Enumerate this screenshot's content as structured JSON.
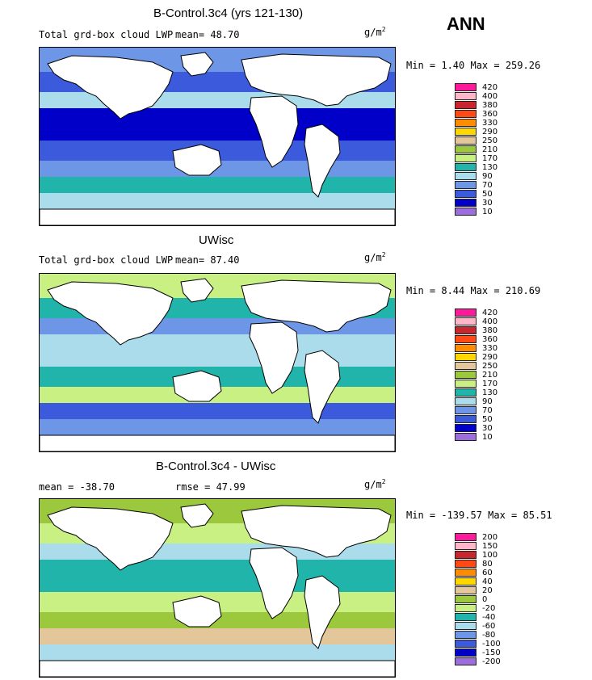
{
  "season_label": "ANN",
  "panels": [
    {
      "title": "B-Control.3c4 (yrs 121-130)",
      "left_label": "Total grd-box cloud LWP",
      "mean_text": "mean=  48.70",
      "units": "g/m",
      "units_sup": "2",
      "minmax": "Min =   1.40 Max = 259.26",
      "legend_labels": [
        "420",
        "400",
        "380",
        "360",
        "330",
        "290",
        "250",
        "210",
        "170",
        "130",
        "90",
        "70",
        "50",
        "30",
        "10"
      ],
      "legend_colors": [
        "#ff1a9b",
        "#ffb6c8",
        "#c8282d",
        "#ff4a18",
        "#ff8c00",
        "#ffd700",
        "#e3c79b",
        "#9bc83c",
        "#c8f082",
        "#20b4aa",
        "#aadcec",
        "#6e96e6",
        "#3c5adc",
        "#0000c8",
        "#9b6edc"
      ],
      "ocean_palette": [
        "#0000c8",
        "#3c5adc",
        "#6e96e6",
        "#aadcec",
        "#20b4aa"
      ]
    },
    {
      "title": "UWisc",
      "left_label": "Total grd-box cloud LWP",
      "mean_text": "mean=  87.40",
      "units": "g/m",
      "units_sup": "2",
      "minmax": "Min =   8.44 Max = 210.69",
      "legend_labels": [
        "420",
        "400",
        "380",
        "360",
        "330",
        "290",
        "250",
        "210",
        "170",
        "130",
        "90",
        "70",
        "50",
        "30",
        "10"
      ],
      "legend_colors": [
        "#ff1a9b",
        "#ffb6c8",
        "#c8282d",
        "#ff4a18",
        "#ff8c00",
        "#ffd700",
        "#e3c79b",
        "#9bc83c",
        "#c8f082",
        "#20b4aa",
        "#aadcec",
        "#6e96e6",
        "#3c5adc",
        "#0000c8",
        "#9b6edc"
      ],
      "ocean_palette": [
        "#aadcec",
        "#20b4aa",
        "#c8f082",
        "#6e96e6",
        "#3c5adc"
      ]
    },
    {
      "title": "B-Control.3c4 - UWisc",
      "left_label": "mean = -38.70",
      "mean_text": "rmse =  47.99",
      "units": "g/m",
      "units_sup": "2",
      "minmax": "Min = -139.57 Max =  85.51",
      "legend_labels": [
        "200",
        "150",
        "100",
        "80",
        "60",
        "40",
        "20",
        "0",
        "-20",
        "-40",
        "-60",
        "-80",
        "-100",
        "-150",
        "-200"
      ],
      "legend_colors": [
        "#ff1a9b",
        "#ffb6c8",
        "#c8282d",
        "#ff4a18",
        "#ff8c00",
        "#ffd700",
        "#e3c79b",
        "#9bc83c",
        "#c8f082",
        "#20b4aa",
        "#aadcec",
        "#6e96e6",
        "#3c5adc",
        "#0000c8",
        "#9b6edc"
      ],
      "ocean_palette": [
        "#20b4aa",
        "#c8f082",
        "#9bc83c",
        "#aadcec",
        "#e3c79b"
      ]
    }
  ]
}
